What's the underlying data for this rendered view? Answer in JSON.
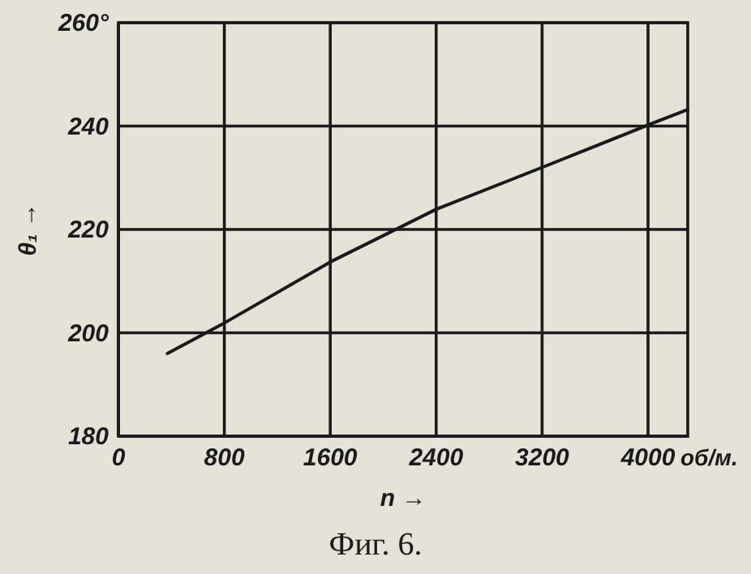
{
  "chart_data": {
    "type": "line",
    "title": "Фиг. 6.",
    "xlabel": "n →",
    "ylabel": "θ₁ →",
    "annotations": [
      "об/м."
    ],
    "x": [
      370,
      800,
      1600,
      2400,
      3200,
      4000,
      4300
    ],
    "series": [
      {
        "color": "#1a1a1a",
        "values": [
          196,
          201.9,
          213.7,
          223.9,
          232,
          240.2,
          243.2
        ]
      }
    ],
    "xlim": [
      0,
      4300
    ],
    "xticks": [
      0,
      800,
      1600,
      2400,
      3200,
      4000
    ],
    "ylim": [
      180,
      260
    ],
    "yticks": [
      180,
      200,
      220,
      240,
      {
        "value": 260,
        "label": "260°"
      }
    ],
    "grid": true,
    "marker": "none",
    "line_style": "solid"
  }
}
